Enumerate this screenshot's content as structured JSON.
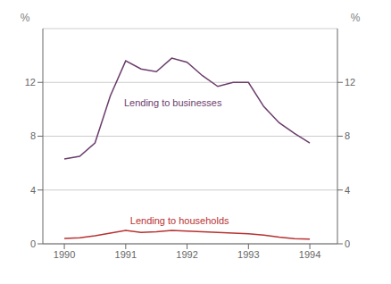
{
  "chart_data": {
    "type": "line",
    "x": [
      1990.0,
      1990.25,
      1990.5,
      1990.75,
      1991.0,
      1991.25,
      1991.5,
      1991.75,
      1992.0,
      1992.25,
      1992.5,
      1992.75,
      1993.0,
      1993.25,
      1993.5,
      1993.75,
      1994.0
    ],
    "series": [
      {
        "name": "Lending to businesses",
        "color": "#6b3d6b",
        "values": [
          6.3,
          6.5,
          7.5,
          11.0,
          13.6,
          13.0,
          12.8,
          13.8,
          13.5,
          12.5,
          11.7,
          12.0,
          12.0,
          10.2,
          9.0,
          8.2,
          7.5
        ]
      },
      {
        "name": "Lending to households",
        "color": "#b83232",
        "values": [
          0.4,
          0.45,
          0.6,
          0.8,
          1.0,
          0.85,
          0.9,
          1.0,
          0.95,
          0.9,
          0.85,
          0.8,
          0.75,
          0.65,
          0.5,
          0.38,
          0.35
        ]
      }
    ],
    "annotations": [
      {
        "text": "Lending to businesses",
        "x": 1990.9,
        "y": 10.5,
        "color": "#6b3d6b"
      },
      {
        "text": "Lending to households",
        "x": 1991.0,
        "y": 1.75,
        "color": "#b83232"
      }
    ],
    "ylabel": "%",
    "y2label": "%",
    "xlim": [
      1989.65,
      1994.45
    ],
    "xticks": [
      1990,
      1991,
      1992,
      1993,
      1994
    ],
    "ylim": [
      0,
      16
    ],
    "yticks": [
      0,
      4,
      8,
      12
    ],
    "y2lim": [
      0,
      16
    ],
    "y2ticks": [
      0,
      4,
      8,
      12
    ],
    "grid": true
  }
}
